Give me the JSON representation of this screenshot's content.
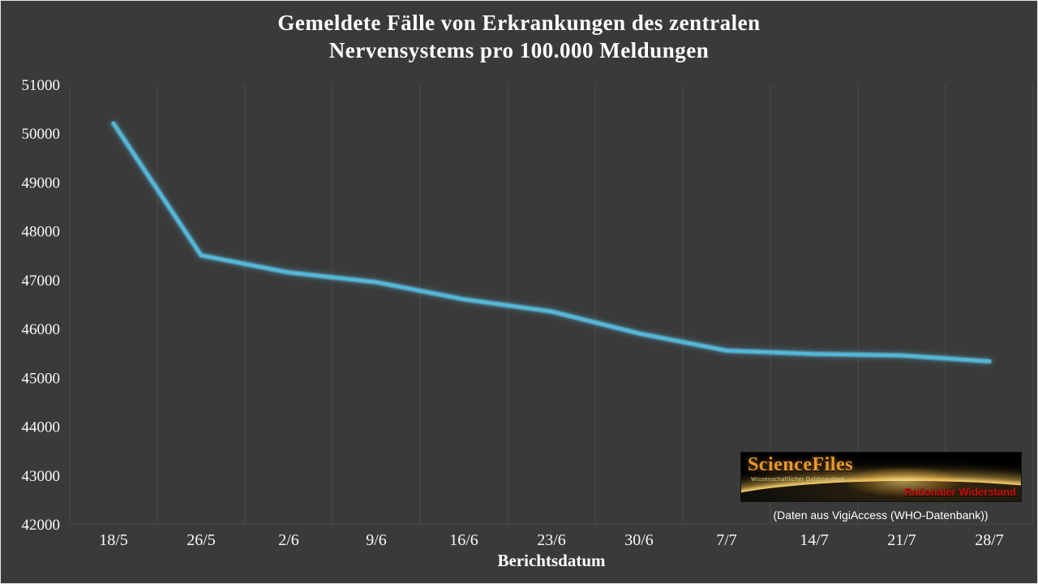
{
  "page": {
    "title_line1": "Gemeldete Fälle von Erkrankungen des zentralen",
    "title_line2": "Nervensystems pro 100.000 Meldungen"
  },
  "chart_data": {
    "type": "line",
    "title": "Gemeldete Fälle von Erkrankungen des zentralen Nervensystems pro 100.000 Meldungen",
    "xlabel": "Berichtsdatum",
    "ylabel": "",
    "categories": [
      "18/5",
      "26/5",
      "2/6",
      "9/6",
      "16/6",
      "23/6",
      "30/6",
      "7/7",
      "14/7",
      "21/7",
      "28/7"
    ],
    "values": [
      50200,
      47500,
      47150,
      46950,
      46600,
      46350,
      45900,
      45550,
      45480,
      45450,
      45330
    ],
    "ylim": [
      42000,
      51000
    ],
    "ytick_step": 1000,
    "grid": "vertical-only",
    "legend": "none",
    "line_color": "#56b7d8",
    "grid_color": "#4c4c4c",
    "background": "#3a3a3a",
    "text_color": "#fafafa"
  },
  "xaxis": {
    "title": "Berichtsdatum"
  },
  "logo": {
    "brand": "ScienceFiles",
    "subtitle": "Wissenschaftlicher Goldstandard",
    "tagline": "Rationaler Widerstand"
  },
  "caption": {
    "text": "(Daten aus VigiAccess (WHO-Datenbank))"
  }
}
